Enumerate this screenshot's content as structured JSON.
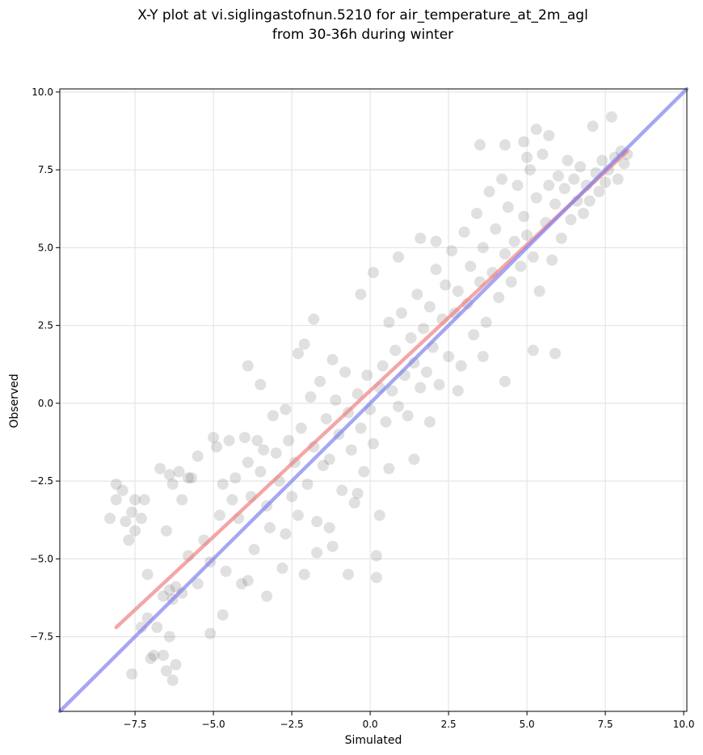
{
  "chart_data": {
    "type": "scatter",
    "title_line1": "X-Y plot at vi.siglingastofnun.5210 for air_temperature_at_2m_agl",
    "title_line2": "from 30-36h during winter",
    "xlabel": "Simulated",
    "ylabel": "Observed",
    "xlim": [
      -9.9,
      10.1
    ],
    "ylim": [
      -9.9,
      10.1
    ],
    "xticks": [
      {
        "value": -7.5,
        "label": "−7.5"
      },
      {
        "value": -5.0,
        "label": "−5.0"
      },
      {
        "value": -2.5,
        "label": "−2.5"
      },
      {
        "value": 0.0,
        "label": "0.0"
      },
      {
        "value": 2.5,
        "label": "2.5"
      },
      {
        "value": 5.0,
        "label": "5.0"
      },
      {
        "value": 7.5,
        "label": "7.5"
      },
      {
        "value": 10.0,
        "label": "10.0"
      }
    ],
    "yticks": [
      {
        "value": -7.5,
        "label": "−7.5"
      },
      {
        "value": -5.0,
        "label": "−5.0"
      },
      {
        "value": -2.5,
        "label": "−2.5"
      },
      {
        "value": 0.0,
        "label": "0.0"
      },
      {
        "value": 2.5,
        "label": "2.5"
      },
      {
        "value": 5.0,
        "label": "5.0"
      },
      {
        "value": 7.5,
        "label": "7.5"
      },
      {
        "value": 10.0,
        "label": "10.0"
      }
    ],
    "grid": true,
    "point_color": "#404040",
    "points": [
      [
        -8.3,
        -3.7
      ],
      [
        -8.1,
        -2.6
      ],
      [
        -8.1,
        -3.1
      ],
      [
        -7.9,
        -2.8
      ],
      [
        -7.8,
        -3.8
      ],
      [
        -7.7,
        -4.4
      ],
      [
        -7.6,
        -3.5
      ],
      [
        -7.5,
        -4.1
      ],
      [
        -7.5,
        -3.1
      ],
      [
        -7.3,
        -3.7
      ],
      [
        -7.2,
        -3.1
      ],
      [
        -7.6,
        -8.7
      ],
      [
        -7.3,
        -7.2
      ],
      [
        -7.1,
        -6.9
      ],
      [
        -7.0,
        -8.2
      ],
      [
        -6.9,
        -8.1
      ],
      [
        -6.8,
        -7.2
      ],
      [
        -6.6,
        -8.1
      ],
      [
        -6.5,
        -8.6
      ],
      [
        -6.4,
        -7.5
      ],
      [
        -6.3,
        -8.9
      ],
      [
        -6.2,
        -8.4
      ],
      [
        -7.1,
        -5.5
      ],
      [
        -6.7,
        -2.1
      ],
      [
        -6.5,
        -4.1
      ],
      [
        -6.4,
        -2.3
      ],
      [
        -6.3,
        -2.6
      ],
      [
        -6.1,
        -2.2
      ],
      [
        -6.0,
        -3.1
      ],
      [
        -5.8,
        -2.4
      ],
      [
        -5.7,
        -2.4
      ],
      [
        -5.5,
        -1.7
      ],
      [
        -6.6,
        -6.2
      ],
      [
        -6.4,
        -6.0
      ],
      [
        -6.3,
        -6.3
      ],
      [
        -6.2,
        -5.9
      ],
      [
        -6.0,
        -6.1
      ],
      [
        -5.8,
        -4.9
      ],
      [
        -5.5,
        -5.8
      ],
      [
        -5.3,
        -4.4
      ],
      [
        -5.1,
        -5.1
      ],
      [
        -5.0,
        -1.1
      ],
      [
        -4.9,
        -1.4
      ],
      [
        -4.8,
        -3.6
      ],
      [
        -4.7,
        -2.6
      ],
      [
        -4.6,
        -5.4
      ],
      [
        -4.5,
        -1.2
      ],
      [
        -4.4,
        -3.1
      ],
      [
        -4.3,
        -2.4
      ],
      [
        -4.2,
        -3.7
      ],
      [
        -4.1,
        -5.8
      ],
      [
        -4.0,
        -1.1
      ],
      [
        -3.9,
        -1.9
      ],
      [
        -3.8,
        -3.0
      ],
      [
        -3.7,
        -4.7
      ],
      [
        -3.6,
        -1.2
      ],
      [
        -3.5,
        -2.2
      ],
      [
        -3.4,
        -1.5
      ],
      [
        -3.3,
        -3.3
      ],
      [
        -3.2,
        -4.0
      ],
      [
        -3.1,
        -0.4
      ],
      [
        -3.0,
        -1.6
      ],
      [
        -2.9,
        -2.5
      ],
      [
        -2.8,
        -5.3
      ],
      [
        -2.7,
        -0.2
      ],
      [
        -2.6,
        -1.2
      ],
      [
        -2.5,
        -3.0
      ],
      [
        -2.4,
        -1.9
      ],
      [
        -2.3,
        -3.6
      ],
      [
        -2.2,
        -0.8
      ],
      [
        -2.1,
        1.9
      ],
      [
        -2.0,
        -2.6
      ],
      [
        -1.9,
        0.2
      ],
      [
        -1.8,
        -1.4
      ],
      [
        -1.7,
        -3.8
      ],
      [
        -1.6,
        0.7
      ],
      [
        -1.5,
        -2.0
      ],
      [
        -1.4,
        -0.5
      ],
      [
        -1.3,
        -1.8
      ],
      [
        -1.2,
        -4.6
      ],
      [
        -1.1,
        0.1
      ],
      [
        -1.0,
        -1.0
      ],
      [
        -0.9,
        -2.8
      ],
      [
        -0.8,
        1.0
      ],
      [
        -0.7,
        -0.3
      ],
      [
        -0.6,
        -1.5
      ],
      [
        -0.5,
        -3.2
      ],
      [
        -0.4,
        0.3
      ],
      [
        -0.3,
        -0.8
      ],
      [
        -0.2,
        -2.2
      ],
      [
        -0.1,
        0.9
      ],
      [
        0.0,
        -0.2
      ],
      [
        0.1,
        -1.3
      ],
      [
        0.2,
        -4.9
      ],
      [
        0.3,
        0.5
      ],
      [
        0.4,
        1.2
      ],
      [
        0.5,
        -0.6
      ],
      [
        0.6,
        2.6
      ],
      [
        0.7,
        0.4
      ],
      [
        0.8,
        1.7
      ],
      [
        0.9,
        -0.1
      ],
      [
        1.0,
        2.9
      ],
      [
        1.1,
        0.9
      ],
      [
        1.2,
        -0.4
      ],
      [
        1.3,
        2.1
      ],
      [
        1.4,
        1.3
      ],
      [
        1.5,
        3.5
      ],
      [
        1.6,
        0.5
      ],
      [
        1.7,
        2.4
      ],
      [
        1.8,
        1.0
      ],
      [
        1.9,
        3.1
      ],
      [
        2.0,
        1.8
      ],
      [
        2.1,
        4.3
      ],
      [
        2.2,
        0.6
      ],
      [
        2.3,
        2.7
      ],
      [
        2.4,
        3.8
      ],
      [
        2.5,
        1.5
      ],
      [
        2.6,
        4.9
      ],
      [
        2.7,
        2.9
      ],
      [
        2.8,
        3.6
      ],
      [
        2.9,
        1.2
      ],
      [
        3.0,
        5.5
      ],
      [
        3.1,
        3.2
      ],
      [
        3.2,
        4.4
      ],
      [
        3.3,
        2.2
      ],
      [
        3.4,
        6.1
      ],
      [
        3.5,
        3.9
      ],
      [
        3.6,
        5.0
      ],
      [
        3.7,
        2.6
      ],
      [
        3.8,
        6.8
      ],
      [
        3.9,
        4.2
      ],
      [
        4.0,
        5.6
      ],
      [
        4.1,
        3.4
      ],
      [
        4.2,
        7.2
      ],
      [
        4.3,
        4.8
      ],
      [
        4.4,
        6.3
      ],
      [
        4.5,
        3.9
      ],
      [
        4.6,
        5.2
      ],
      [
        4.7,
        7.0
      ],
      [
        4.8,
        4.4
      ],
      [
        4.9,
        6.0
      ],
      [
        5.0,
        5.4
      ],
      [
        5.1,
        7.5
      ],
      [
        5.2,
        4.7
      ],
      [
        5.3,
        6.6
      ],
      [
        5.4,
        3.6
      ],
      [
        5.5,
        8.0
      ],
      [
        5.6,
        5.8
      ],
      [
        5.7,
        7.0
      ],
      [
        5.8,
        4.6
      ],
      [
        5.9,
        6.4
      ],
      [
        6.0,
        7.3
      ],
      [
        6.1,
        5.3
      ],
      [
        6.2,
        6.9
      ],
      [
        6.3,
        7.8
      ],
      [
        6.4,
        5.9
      ],
      [
        6.5,
        7.2
      ],
      [
        6.6,
        6.5
      ],
      [
        6.7,
        7.6
      ],
      [
        6.8,
        6.1
      ],
      [
        6.9,
        7.0
      ],
      [
        7.0,
        6.5
      ],
      [
        7.1,
        8.9
      ],
      [
        7.2,
        7.4
      ],
      [
        7.3,
        6.8
      ],
      [
        7.4,
        7.8
      ],
      [
        7.5,
        7.1
      ],
      [
        7.6,
        7.5
      ],
      [
        7.7,
        9.2
      ],
      [
        7.8,
        7.9
      ],
      [
        7.9,
        7.2
      ],
      [
        8.0,
        8.1
      ],
      [
        8.1,
        7.7
      ],
      [
        8.2,
        8.0
      ],
      [
        5.3,
        8.8
      ],
      [
        5.7,
        8.6
      ],
      [
        4.9,
        8.4
      ],
      [
        3.5,
        8.3
      ],
      [
        4.3,
        8.3
      ],
      [
        5.0,
        7.9
      ],
      [
        -1.8,
        2.7
      ],
      [
        -2.3,
        1.6
      ],
      [
        -3.9,
        1.2
      ],
      [
        -3.5,
        0.6
      ],
      [
        -1.2,
        1.4
      ],
      [
        -0.3,
        3.5
      ],
      [
        0.1,
        4.2
      ],
      [
        0.9,
        4.7
      ],
      [
        1.6,
        5.3
      ],
      [
        2.1,
        5.2
      ],
      [
        5.9,
        1.6
      ],
      [
        5.2,
        1.7
      ],
      [
        4.3,
        0.7
      ],
      [
        3.6,
        1.5
      ],
      [
        2.8,
        0.4
      ],
      [
        1.9,
        -0.6
      ],
      [
        1.4,
        -1.8
      ],
      [
        0.6,
        -2.1
      ],
      [
        0.3,
        -3.6
      ],
      [
        -0.4,
        -2.9
      ],
      [
        0.2,
        -5.6
      ],
      [
        -0.7,
        -5.5
      ],
      [
        -1.7,
        -4.8
      ],
      [
        -2.7,
        -4.2
      ],
      [
        -3.3,
        -6.2
      ],
      [
        -4.7,
        -6.8
      ],
      [
        -5.1,
        -7.4
      ],
      [
        -3.9,
        -5.7
      ],
      [
        -2.1,
        -5.5
      ],
      [
        -1.3,
        -4.0
      ]
    ],
    "series": [
      {
        "kind": "fit",
        "color": "#f08080",
        "x": [
          -8.1,
          8.2
        ],
        "y": [
          -7.2,
          8.1
        ]
      },
      {
        "kind": "identity",
        "color": "#8080f0",
        "x": [
          -9.9,
          10.1
        ],
        "y": [
          -9.9,
          10.1
        ]
      }
    ]
  }
}
